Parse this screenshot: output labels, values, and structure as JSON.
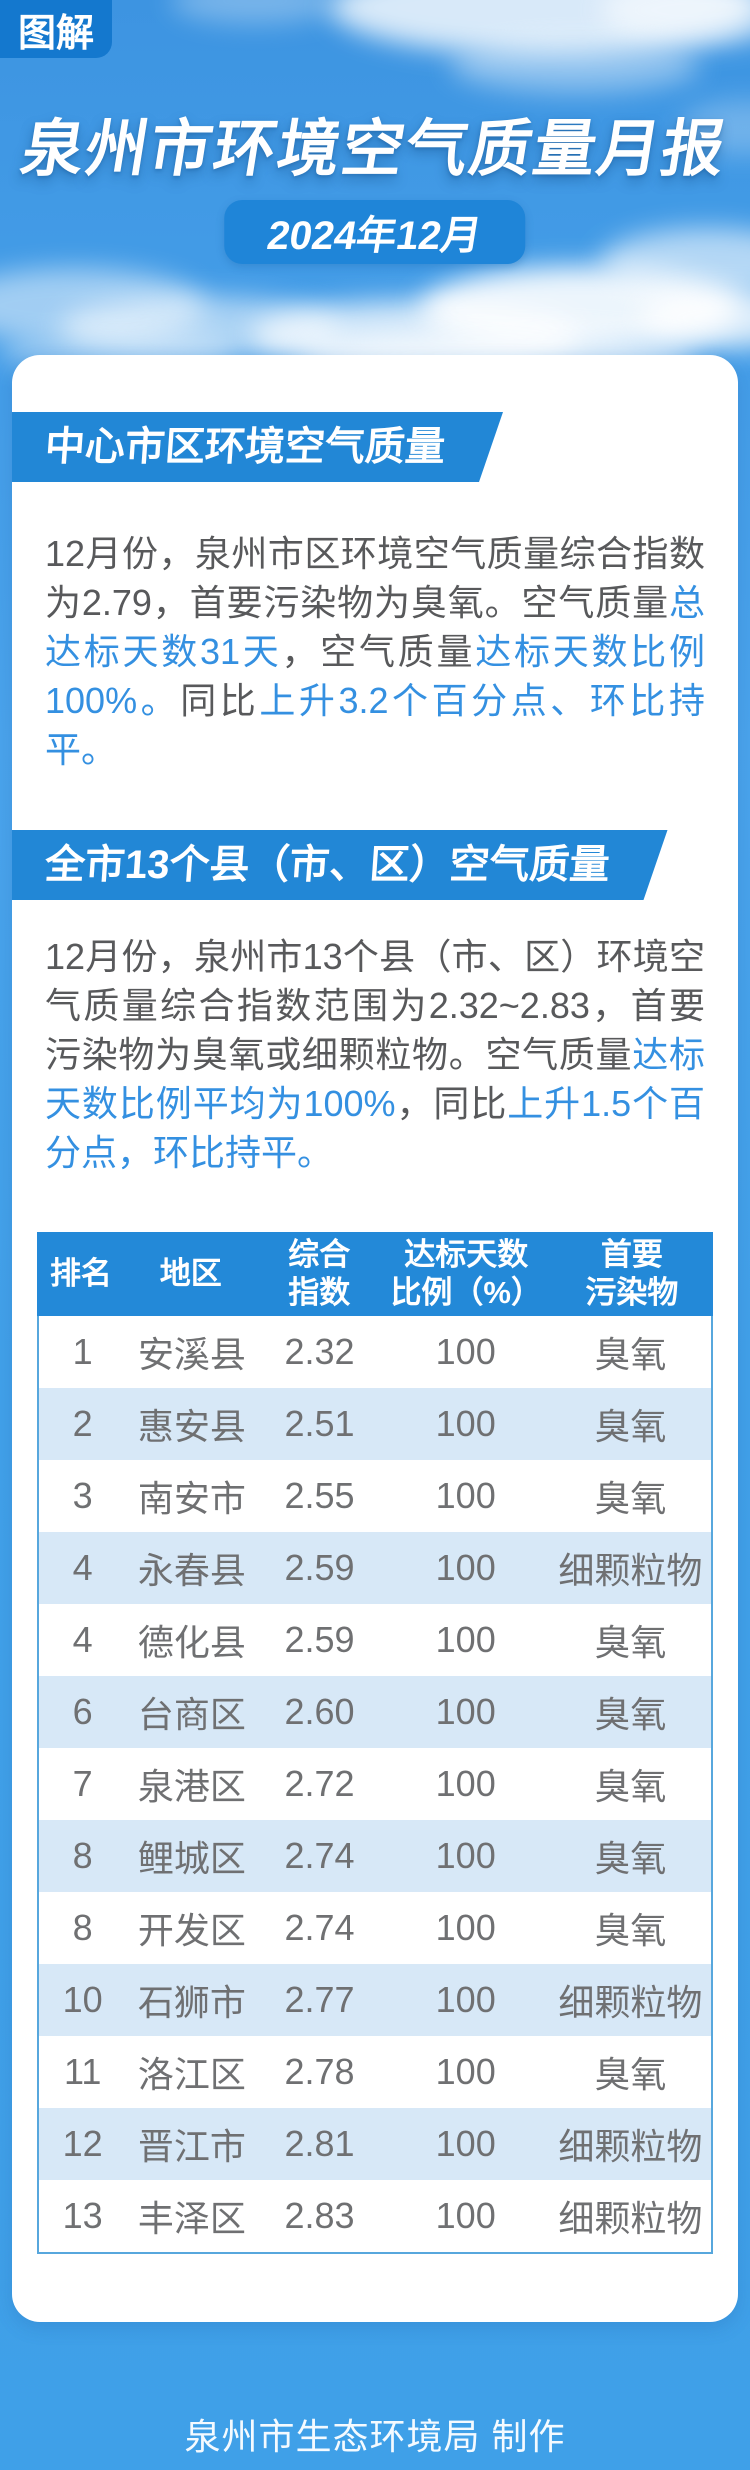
{
  "badge": {
    "label": "图解"
  },
  "header": {
    "title": "泉州市环境空气质量月报",
    "period": "2024年12月"
  },
  "sections": [
    {
      "heading": "中心市区环境空气质量",
      "paragraph": [
        {
          "text": "12月份，泉州市区环境空气质量综合指数为2.79，首要污染物为臭氧。空气质量",
          "highlight": false
        },
        {
          "text": "总达标天数31天",
          "highlight": true
        },
        {
          "text": "，空气质量",
          "highlight": false
        },
        {
          "text": "达标天数比例100%。",
          "highlight": true
        },
        {
          "text": "同比",
          "highlight": false
        },
        {
          "text": "上升3.2个百分点、环比持平。",
          "highlight": true
        }
      ]
    },
    {
      "heading": "全市13个县（市、区）空气质量",
      "paragraph": [
        {
          "text": "12月份，泉州市13个县（市、区）环境空气质量综合指数范围为2.32~2.83，首要污染物为臭氧或细颗粒物。空气质量",
          "highlight": false
        },
        {
          "text": "达标天数比例平均为100%",
          "highlight": true
        },
        {
          "text": "，同比",
          "highlight": false
        },
        {
          "text": "上升1.5个百分点，环比持平。",
          "highlight": true
        }
      ]
    }
  ],
  "table": {
    "columns": [
      {
        "label": "排名",
        "lines": [
          "排名"
        ]
      },
      {
        "label": "地区",
        "lines": [
          "地区"
        ]
      },
      {
        "label": "综合指数",
        "lines": [
          "综合",
          "指数"
        ]
      },
      {
        "label": "达标天数比例（%）",
        "lines": [
          "达标天数",
          "比例（%）"
        ]
      },
      {
        "label": "首要污染物",
        "lines": [
          "首要",
          "污染物"
        ]
      }
    ],
    "rows": [
      {
        "rank": "1",
        "region": "安溪县",
        "index": "2.32",
        "ratio": "100",
        "pollutant": "臭氧"
      },
      {
        "rank": "2",
        "region": "惠安县",
        "index": "2.51",
        "ratio": "100",
        "pollutant": "臭氧"
      },
      {
        "rank": "3",
        "region": "南安市",
        "index": "2.55",
        "ratio": "100",
        "pollutant": "臭氧"
      },
      {
        "rank": "4",
        "region": "永春县",
        "index": "2.59",
        "ratio": "100",
        "pollutant": "细颗粒物"
      },
      {
        "rank": "4",
        "region": "德化县",
        "index": "2.59",
        "ratio": "100",
        "pollutant": "臭氧"
      },
      {
        "rank": "6",
        "region": "台商区",
        "index": "2.60",
        "ratio": "100",
        "pollutant": "臭氧"
      },
      {
        "rank": "7",
        "region": "泉港区",
        "index": "2.72",
        "ratio": "100",
        "pollutant": "臭氧"
      },
      {
        "rank": "8",
        "region": "鲤城区",
        "index": "2.74",
        "ratio": "100",
        "pollutant": "臭氧"
      },
      {
        "rank": "8",
        "region": "开发区",
        "index": "2.74",
        "ratio": "100",
        "pollutant": "臭氧"
      },
      {
        "rank": "10",
        "region": "石狮市",
        "index": "2.77",
        "ratio": "100",
        "pollutant": "细颗粒物"
      },
      {
        "rank": "11",
        "region": "洛江区",
        "index": "2.78",
        "ratio": "100",
        "pollutant": "臭氧"
      },
      {
        "rank": "12",
        "region": "晋江市",
        "index": "2.81",
        "ratio": "100",
        "pollutant": "细颗粒物"
      },
      {
        "rank": "13",
        "region": "丰泽区",
        "index": "2.83",
        "ratio": "100",
        "pollutant": "细颗粒物"
      }
    ]
  },
  "footer": {
    "credit": "泉州市生态环境局 制作"
  },
  "colors": {
    "sky_blue": "#429BE6",
    "badge_blue": "#1478CE",
    "banner_blue": "#2287D6",
    "table_header_blue": "#2389D8",
    "row_stripe_blue": "#D7E8F7",
    "highlight_text_blue": "#3490E1",
    "body_text_grey": "#58595B"
  }
}
